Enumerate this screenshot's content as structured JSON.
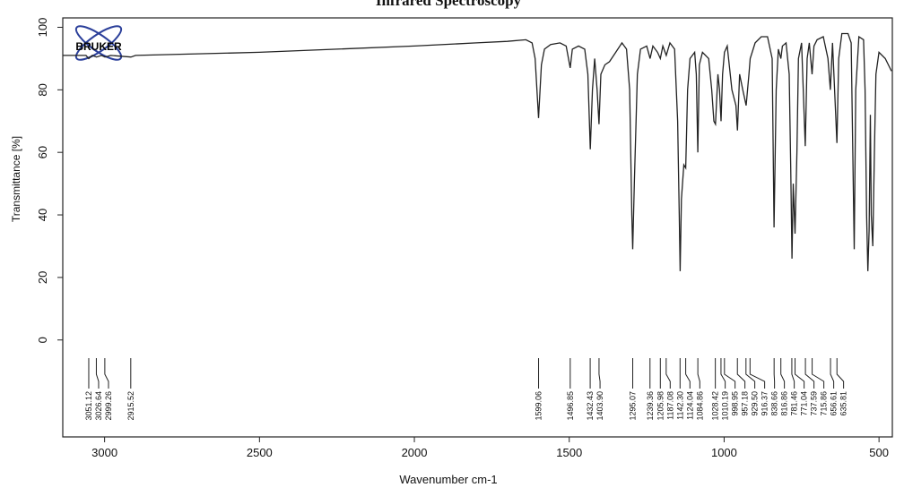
{
  "chart_data": {
    "type": "line",
    "title": "Infrared Spectroscopy",
    "logo": "BRUKER",
    "x_label": "Wavenumber cm-1",
    "y_label": "Transmittance [%]",
    "xlim": [
      3135,
      457
    ],
    "ylim": [
      -31,
      103
    ],
    "xticks": [
      3000,
      2500,
      2000,
      1500,
      1000,
      500
    ],
    "yticks": [
      0,
      20,
      40,
      60,
      80,
      100
    ],
    "color": "#222222",
    "x": [
      3135,
      3060,
      3051,
      3040,
      3026,
      3010,
      2999,
      2980,
      2915,
      2900,
      2500,
      2000,
      1800,
      1700,
      1640,
      1620,
      1610,
      1599,
      1590,
      1580,
      1560,
      1530,
      1510,
      1497,
      1490,
      1470,
      1450,
      1440,
      1432,
      1425,
      1418,
      1410,
      1404,
      1398,
      1385,
      1370,
      1350,
      1330,
      1315,
      1305,
      1298,
      1295,
      1290,
      1280,
      1270,
      1250,
      1239,
      1230,
      1215,
      1206,
      1198,
      1187,
      1175,
      1160,
      1150,
      1145,
      1142,
      1138,
      1130,
      1124,
      1118,
      1110,
      1095,
      1090,
      1085,
      1080,
      1070,
      1050,
      1040,
      1033,
      1028,
      1020,
      1015,
      1010,
      1005,
      999,
      990,
      975,
      962,
      957,
      950,
      940,
      929,
      920,
      916,
      900,
      880,
      860,
      845,
      839,
      832,
      825,
      817,
      812,
      800,
      790,
      785,
      781,
      777,
      771,
      765,
      760,
      750,
      738,
      732,
      725,
      716,
      710,
      700,
      680,
      665,
      657,
      650,
      636,
      630,
      620,
      600,
      590,
      580,
      575,
      565,
      550,
      545,
      540,
      536,
      532,
      528,
      525,
      520,
      515,
      510,
      500,
      480,
      460
    ],
    "values": [
      91,
      91,
      90,
      91,
      90.5,
      91,
      90.5,
      91,
      90.5,
      91,
      92,
      94,
      95,
      95.5,
      96,
      95,
      90,
      71,
      88,
      93,
      94.5,
      95,
      94,
      87,
      93,
      94,
      93,
      85,
      61,
      80,
      90,
      80,
      69,
      85,
      88,
      89,
      92,
      95,
      93,
      80,
      40,
      29,
      50,
      85,
      93,
      94,
      90,
      94,
      92,
      90,
      94,
      91,
      95,
      93,
      70,
      40,
      22,
      45,
      56,
      55,
      80,
      90,
      92,
      85,
      60,
      88,
      92,
      90,
      80,
      70,
      69,
      85,
      80,
      70,
      85,
      92,
      94,
      80,
      75,
      67,
      85,
      80,
      75,
      85,
      90,
      95,
      97,
      97,
      90,
      36,
      80,
      93,
      90,
      94,
      95,
      85,
      55,
      26,
      50,
      34,
      60,
      90,
      95,
      62,
      90,
      95,
      85,
      94,
      96,
      97,
      90,
      80,
      95,
      63,
      90,
      98,
      98,
      95,
      29,
      80,
      97,
      96,
      80,
      40,
      22,
      35,
      72,
      40,
      30,
      60,
      85,
      92,
      90,
      86
    ],
    "peak_labels": [
      "3051.12",
      "3026.64",
      "2999.26",
      "2915.52",
      "1599.06",
      "1496.85",
      "1432.43",
      "1403.90",
      "1295.07",
      "1239.36",
      "1205.98",
      "1187.08",
      "1142.30",
      "1124.04",
      "1084.86",
      "1028.42",
      "1010.19",
      "998.95",
      "957.18",
      "929.50",
      "916.37",
      "838.66",
      "816.86",
      "781.46",
      "771.04",
      "737.59",
      "715.86",
      "656.61",
      "635.81"
    ]
  }
}
